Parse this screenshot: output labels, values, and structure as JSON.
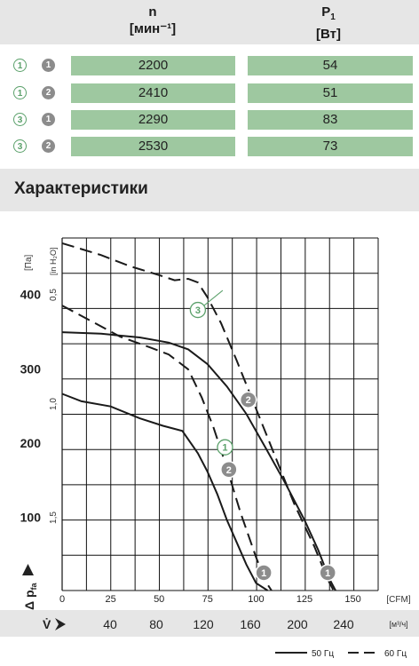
{
  "table": {
    "col_n": {
      "symbol": "n",
      "unit": "[мин⁻¹]"
    },
    "col_p": {
      "symbol": "P",
      "sub": "1",
      "unit": "[Вт]"
    },
    "rows": [
      {
        "curve_a": "1",
        "curve_b": "1",
        "n": "2200",
        "p": "54"
      },
      {
        "curve_a": "1",
        "curve_b": "2",
        "n": "2410",
        "p": "51"
      },
      {
        "curve_a": "3",
        "curve_b": "1",
        "n": "2290",
        "p": "83"
      },
      {
        "curve_a": "3",
        "curve_b": "2",
        "n": "2530",
        "p": "73"
      }
    ]
  },
  "section_title": "Характеристики",
  "chart_data": {
    "type": "line",
    "x_cfm": {
      "label": "[CFM]",
      "ticks": [
        "0",
        "25",
        "50",
        "75",
        "100",
        "125",
        "150"
      ],
      "range": [
        0,
        163
      ]
    },
    "x_m3h": {
      "label": "[м³/ч]",
      "ticks": [
        "40",
        "80",
        "120",
        "160",
        "200",
        "240"
      ]
    },
    "y_pa": {
      "label": "[Па]",
      "ticks": [
        "100",
        "200",
        "300",
        "400"
      ],
      "range": [
        0,
        475
      ]
    },
    "y_inh2o": {
      "label": "[in H₂O]",
      "ticks": [
        "0,5",
        "1,0",
        "1,5"
      ]
    },
    "y_symbol": "Δ p",
    "y_symbol_sub": "fa",
    "v_symbol": "V̇",
    "series": [
      {
        "id": "1-1",
        "style": "solid",
        "points": [
          [
            0,
            265
          ],
          [
            10,
            255
          ],
          [
            25,
            248
          ],
          [
            40,
            232
          ],
          [
            52,
            222
          ],
          [
            62,
            215
          ],
          [
            70,
            185
          ],
          [
            75,
            160
          ],
          [
            80,
            130
          ],
          [
            85,
            95
          ],
          [
            90,
            65
          ],
          [
            95,
            35
          ],
          [
            100,
            10
          ],
          [
            106,
            0
          ]
        ]
      },
      {
        "id": "1-2",
        "style": "solid",
        "points": [
          [
            0,
            348
          ],
          [
            20,
            346
          ],
          [
            40,
            341
          ],
          [
            55,
            334
          ],
          [
            65,
            325
          ],
          [
            75,
            305
          ],
          [
            85,
            275
          ],
          [
            95,
            238
          ],
          [
            105,
            192
          ],
          [
            115,
            145
          ],
          [
            125,
            95
          ],
          [
            132,
            55
          ],
          [
            138,
            15
          ],
          [
            141,
            0
          ]
        ]
      },
      {
        "id": "3-1",
        "style": "dashed",
        "points": [
          [
            0,
            384
          ],
          [
            15,
            363
          ],
          [
            30,
            342
          ],
          [
            45,
            328
          ],
          [
            55,
            318
          ],
          [
            65,
            298
          ],
          [
            72,
            260
          ],
          [
            78,
            220
          ],
          [
            85,
            165
          ],
          [
            92,
            105
          ],
          [
            100,
            45
          ],
          [
            105,
            12
          ],
          [
            108,
            0
          ]
        ]
      },
      {
        "id": "3-2",
        "style": "dashed",
        "points": [
          [
            0,
            468
          ],
          [
            20,
            452
          ],
          [
            35,
            437
          ],
          [
            50,
            425
          ],
          [
            58,
            418
          ],
          [
            65,
            420
          ],
          [
            70,
            415
          ],
          [
            75,
            395
          ],
          [
            82,
            360
          ],
          [
            90,
            310
          ],
          [
            100,
            245
          ],
          [
            110,
            180
          ],
          [
            120,
            115
          ],
          [
            130,
            60
          ],
          [
            137,
            15
          ],
          [
            140,
            0
          ]
        ]
      }
    ],
    "curve_markers": [
      {
        "label": "3",
        "style": "outline",
        "x": 70,
        "y": 378
      },
      {
        "label": "2",
        "style": "solid",
        "x": 96,
        "y": 257
      },
      {
        "label": "1",
        "style": "outline",
        "x": 84,
        "y": 193
      },
      {
        "label": "2",
        "style": "solid",
        "x": 86,
        "y": 163
      },
      {
        "label": "1",
        "style": "solid",
        "x": 104,
        "y": 24
      },
      {
        "label": "1",
        "style": "solid",
        "x": 137,
        "y": 24
      }
    ],
    "legend": [
      {
        "label": "50 Гц",
        "style": "solid"
      },
      {
        "label": "60 Гц",
        "style": "dashed"
      }
    ]
  }
}
